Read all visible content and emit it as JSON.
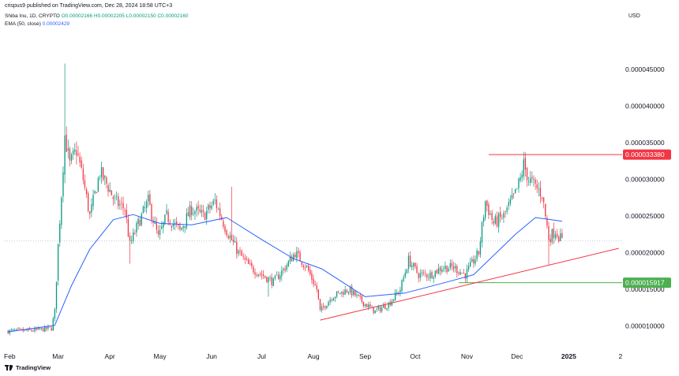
{
  "header": {
    "publish_text": "crispus9 published on TradingView.com, Dec 28, 2024 18:58 UTC+3",
    "symbol_line": "Shiba Inu, 1D, CRYPTO",
    "ohlc": "O0.00002166 H0.00002205 L0.00002150 C0.00002160",
    "ema_label": "EMA (50, close)",
    "ema_value": "0.00002429",
    "currency": "USD"
  },
  "brand": {
    "name": "TradingView",
    "icon": "tradingview-logo-icon"
  },
  "colors": {
    "up": "#089981",
    "down": "#f23645",
    "ema": "#2962ff",
    "trendline": "#f23645",
    "resistance": "#f23645",
    "support": "#4caf50",
    "last_price": "#b2b5be"
  },
  "chart_data": {
    "type": "candlestick",
    "x_ticks": [
      "Feb",
      "Mar",
      "Apr",
      "May",
      "Jun",
      "Jul",
      "Aug",
      "Sep",
      "Oct",
      "Nov",
      "Dec",
      "2025",
      "2"
    ],
    "y_ticks": [
      "0.000010000",
      "0.000015000",
      "0.000020000",
      "0.000025000",
      "0.000030000",
      "0.000035000",
      "0.000040000",
      "0.000045000"
    ],
    "ylim": [
      6.3e-06,
      4.91e-05
    ],
    "grid": false,
    "close_path": [
      [
        "2024-01-31",
        9.3e-06
      ],
      [
        "2024-02-15",
        9.4e-06
      ],
      [
        "2024-02-26",
        9.7e-06
      ],
      [
        "2024-02-28",
        1.2e-05
      ],
      [
        "2024-03-01",
        2.1e-05
      ],
      [
        "2024-03-03",
        2.8e-05
      ],
      [
        "2024-03-05",
        3.6e-05
      ],
      [
        "2024-03-08",
        3.2e-05
      ],
      [
        "2024-03-12",
        3.4e-05
      ],
      [
        "2024-03-16",
        3e-05
      ],
      [
        "2024-03-20",
        2.5e-05
      ],
      [
        "2024-03-26",
        3.1e-05
      ],
      [
        "2024-03-31",
        2.9e-05
      ],
      [
        "2024-04-04",
        2.7e-05
      ],
      [
        "2024-04-10",
        2.6e-05
      ],
      [
        "2024-04-13",
        2.1e-05
      ],
      [
        "2024-04-18",
        2.4e-05
      ],
      [
        "2024-04-24",
        2.7e-05
      ],
      [
        "2024-04-30",
        2.2e-05
      ],
      [
        "2024-05-05",
        2.5e-05
      ],
      [
        "2024-05-13",
        2.3e-05
      ],
      [
        "2024-05-20",
        2.6e-05
      ],
      [
        "2024-05-27",
        2.5e-05
      ],
      [
        "2024-06-03",
        2.7e-05
      ],
      [
        "2024-06-10",
        2.3e-05
      ],
      [
        "2024-06-17",
        2e-05
      ],
      [
        "2024-06-24",
        1.8e-05
      ],
      [
        "2024-07-01",
        1.7e-05
      ],
      [
        "2024-07-08",
        1.6e-05
      ],
      [
        "2024-07-15",
        1.8e-05
      ],
      [
        "2024-07-21",
        2e-05
      ],
      [
        "2024-07-28",
        1.8e-05
      ],
      [
        "2024-08-03",
        1.5e-05
      ],
      [
        "2024-08-05",
        1.2e-05
      ],
      [
        "2024-08-12",
        1.4e-05
      ],
      [
        "2024-08-22",
        1.5e-05
      ],
      [
        "2024-09-01",
        1.3e-05
      ],
      [
        "2024-09-07",
        1.2e-05
      ],
      [
        "2024-09-15",
        1.3e-05
      ],
      [
        "2024-09-22",
        1.5e-05
      ],
      [
        "2024-09-27",
        1.9e-05
      ],
      [
        "2024-10-03",
        1.7e-05
      ],
      [
        "2024-10-10",
        1.7e-05
      ],
      [
        "2024-10-17",
        1.8e-05
      ],
      [
        "2024-10-24",
        1.8e-05
      ],
      [
        "2024-10-31",
        1.7e-05
      ],
      [
        "2024-11-08",
        2e-05
      ],
      [
        "2024-11-12",
        2.7e-05
      ],
      [
        "2024-11-17",
        2.4e-05
      ],
      [
        "2024-11-23",
        2.5e-05
      ],
      [
        "2024-11-30",
        2.8e-05
      ],
      [
        "2024-12-03",
        3e-05
      ],
      [
        "2024-12-05",
        3.2e-05
      ],
      [
        "2024-12-08",
        3e-05
      ],
      [
        "2024-12-12",
        2.9e-05
      ],
      [
        "2024-12-16",
        2.8e-05
      ],
      [
        "2024-12-20",
        2.2e-05
      ],
      [
        "2024-12-24",
        2.3e-05
      ],
      [
        "2024-12-28",
        2.16e-05
      ]
    ],
    "spikes": [
      [
        "2024-03-05",
        4.58e-05,
        "high"
      ],
      [
        "2024-04-13",
        1.85e-05,
        "low"
      ],
      [
        "2024-06-13",
        2.9e-05,
        "high"
      ],
      [
        "2024-07-05",
        1.4e-05,
        "low"
      ],
      [
        "2024-12-20",
        1.83e-05,
        "low"
      ]
    ],
    "ema_path": [
      [
        "2024-01-31",
        9.2e-06
      ],
      [
        "2024-02-28",
        1.01e-05
      ],
      [
        "2024-03-09",
        1.55e-05
      ],
      [
        "2024-03-20",
        2.05e-05
      ],
      [
        "2024-04-03",
        2.45e-05
      ],
      [
        "2024-04-15",
        2.52e-05
      ],
      [
        "2024-05-01",
        2.4e-05
      ],
      [
        "2024-05-20",
        2.38e-05
      ],
      [
        "2024-06-10",
        2.48e-05
      ],
      [
        "2024-07-01",
        2.18e-05
      ],
      [
        "2024-07-20",
        1.92e-05
      ],
      [
        "2024-08-06",
        1.78e-05
      ],
      [
        "2024-09-01",
        1.4e-05
      ],
      [
        "2024-09-25",
        1.45e-05
      ],
      [
        "2024-10-20",
        1.6e-05
      ],
      [
        "2024-11-05",
        1.7e-05
      ],
      [
        "2024-11-30",
        2.25e-05
      ],
      [
        "2024-12-12",
        2.48e-05
      ],
      [
        "2024-12-28",
        2.43e-05
      ]
    ],
    "annotations": {
      "resistance": {
        "value": 3.338e-05,
        "from": "2024-11-14",
        "label": "0.000033380"
      },
      "support": {
        "value": 1.5917e-05,
        "from": "2024-10-27",
        "label": "0.000015917"
      },
      "trendline": {
        "from": [
          "2024-08-05",
          1.08e-05
        ],
        "to": [
          "2025-01-31",
          2.06e-05
        ]
      },
      "last_close": 2.16e-05
    }
  }
}
